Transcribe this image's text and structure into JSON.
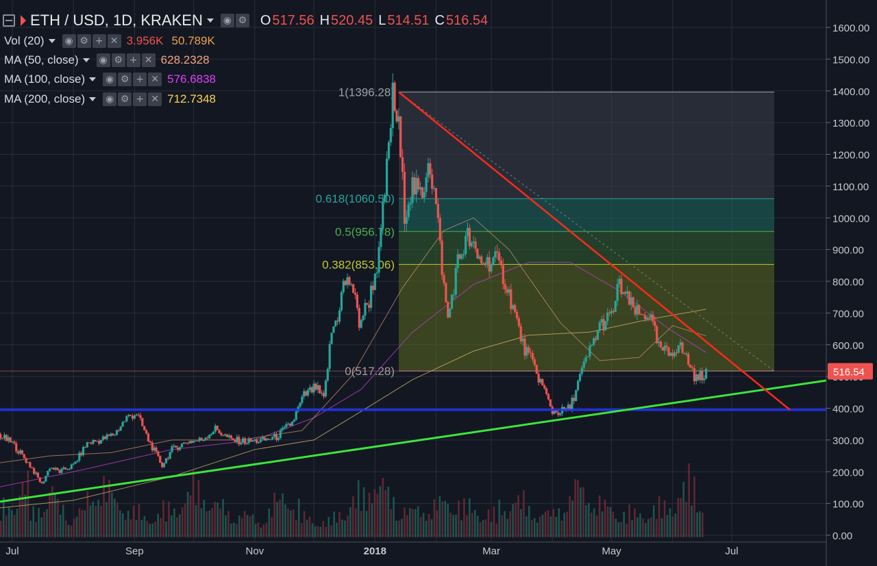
{
  "symbol": {
    "title": "ETH / USD, 1D, KRAKEN",
    "O": "517.56",
    "H": "520.45",
    "L": "514.51",
    "C": "516.54",
    "O_key": "O",
    "H_key": "H",
    "L_key": "L",
    "C_key": "C"
  },
  "indicators": [
    {
      "label": "Vol (20)",
      "values": [
        "3.956K",
        "50.789K"
      ],
      "colors": [
        "#ef5350",
        "#f0a04b"
      ]
    },
    {
      "label": "MA (50, close)",
      "values": [
        "628.2328"
      ],
      "colors": [
        "#f4a582"
      ]
    },
    {
      "label": "MA (100, close)",
      "values": [
        "576.6838"
      ],
      "colors": [
        "#e040fb"
      ]
    },
    {
      "label": "MA (200, close)",
      "values": [
        "712.7348"
      ],
      "colors": [
        "#ffd54f"
      ]
    }
  ],
  "icons": [
    "eye-icon",
    "gear-icon",
    "plus-icon",
    "close-icon"
  ],
  "colors": {
    "background": "#131722",
    "up": "#26a69a",
    "down": "#ef5350",
    "grid": "#2a2e39",
    "support_line": "#3ce63c",
    "resistance_line": "#ff2a1a",
    "horizontal_line": "#1e33ff"
  },
  "chart_data": {
    "type": "line",
    "title": "ETH / USD, 1D, KRAKEN",
    "price_axis": {
      "min": 0,
      "max": 1600,
      "ticks": [
        "1600.00",
        "1500.00",
        "1400.00",
        "1300.00",
        "1200.00",
        "1100.00",
        "1000.00",
        "900.00",
        "800.00",
        "700.00",
        "600.00",
        "500.00",
        "400.00",
        "300.00",
        "200.00",
        "100.00",
        "0.00"
      ]
    },
    "time_axis": {
      "labels": [
        "Jul",
        "Sep",
        "Nov",
        "2018",
        "Mar",
        "May",
        "Jul"
      ]
    },
    "current_price": "516.54",
    "fibonacci": [
      {
        "label": "1(1396.28)",
        "level": 1396.28
      },
      {
        "label": "0.618(1060.50)",
        "level": 1060.5
      },
      {
        "label": "0.5(956.78)",
        "level": 956.78
      },
      {
        "label": "0.382(853.06)",
        "level": 853.06
      },
      {
        "label": "0(517.28)",
        "level": 517.28
      }
    ],
    "horizontal_support": 395,
    "price_path": [
      {
        "x": "Jun 15",
        "y": 300
      },
      {
        "x": "Jun 20",
        "y": 330
      },
      {
        "x": "Jul 1",
        "y": 290
      },
      {
        "x": "Jul 10",
        "y": 220
      },
      {
        "x": "Jul 16",
        "y": 160
      },
      {
        "x": "Jul 20",
        "y": 215
      },
      {
        "x": "Jul 25",
        "y": 200
      },
      {
        "x": "Aug 1",
        "y": 220
      },
      {
        "x": "Aug 8",
        "y": 290
      },
      {
        "x": "Aug 15",
        "y": 300
      },
      {
        "x": "Aug 22",
        "y": 320
      },
      {
        "x": "Aug 28",
        "y": 370
      },
      {
        "x": "Sep 2",
        "y": 385
      },
      {
        "x": "Sep 8",
        "y": 300
      },
      {
        "x": "Sep 15",
        "y": 220
      },
      {
        "x": "Sep 20",
        "y": 270
      },
      {
        "x": "Sep 28",
        "y": 295
      },
      {
        "x": "Oct 5",
        "y": 300
      },
      {
        "x": "Oct 12",
        "y": 335
      },
      {
        "x": "Oct 20",
        "y": 300
      },
      {
        "x": "Oct 28",
        "y": 295
      },
      {
        "x": "Nov 5",
        "y": 298
      },
      {
        "x": "Nov 12",
        "y": 310
      },
      {
        "x": "Nov 20",
        "y": 355
      },
      {
        "x": "Nov 26",
        "y": 440
      },
      {
        "x": "Dec 2",
        "y": 465
      },
      {
        "x": "Dec 6",
        "y": 425
      },
      {
        "x": "Dec 10",
        "y": 640
      },
      {
        "x": "Dec 13",
        "y": 690
      },
      {
        "x": "Dec 16",
        "y": 790
      },
      {
        "x": "Dec 20",
        "y": 800
      },
      {
        "x": "Dec 24",
        "y": 670
      },
      {
        "x": "Dec 29",
        "y": 740
      },
      {
        "x": "Jan 3",
        "y": 880
      },
      {
        "x": "Jan 7",
        "y": 1150
      },
      {
        "x": "Jan 10",
        "y": 1380
      },
      {
        "x": "Jan 13",
        "y": 1280
      },
      {
        "x": "Jan 16",
        "y": 1020
      },
      {
        "x": "Jan 20",
        "y": 1100
      },
      {
        "x": "Jan 25",
        "y": 1060
      },
      {
        "x": "Jan 28",
        "y": 1200
      },
      {
        "x": "Feb 1",
        "y": 1040
      },
      {
        "x": "Feb 5",
        "y": 780
      },
      {
        "x": "Feb 7",
        "y": 680
      },
      {
        "x": "Feb 12",
        "y": 860
      },
      {
        "x": "Feb 17",
        "y": 940
      },
      {
        "x": "Feb 22",
        "y": 870
      },
      {
        "x": "Feb 27",
        "y": 860
      },
      {
        "x": "Mar 3",
        "y": 870
      },
      {
        "x": "Mar 7",
        "y": 820
      },
      {
        "x": "Mar 12",
        "y": 720
      },
      {
        "x": "Mar 17",
        "y": 600
      },
      {
        "x": "Mar 22",
        "y": 540
      },
      {
        "x": "Mar 27",
        "y": 470
      },
      {
        "x": "Apr 1",
        "y": 390
      },
      {
        "x": "Apr 6",
        "y": 390
      },
      {
        "x": "Apr 10",
        "y": 400
      },
      {
        "x": "Apr 15",
        "y": 500
      },
      {
        "x": "Apr 20",
        "y": 580
      },
      {
        "x": "Apr 25",
        "y": 660
      },
      {
        "x": "May 1",
        "y": 690
      },
      {
        "x": "May 5",
        "y": 790
      },
      {
        "x": "May 10",
        "y": 730
      },
      {
        "x": "May 15",
        "y": 690
      },
      {
        "x": "May 20",
        "y": 700
      },
      {
        "x": "May 25",
        "y": 590
      },
      {
        "x": "May 30",
        "y": 570
      },
      {
        "x": "Jun 4",
        "y": 600
      },
      {
        "x": "Jun 8",
        "y": 560
      },
      {
        "x": "Jun 13",
        "y": 490
      },
      {
        "x": "Jun 18",
        "y": 517
      }
    ],
    "ma200_path": [
      {
        "x": "Jun 15",
        "y": 80
      },
      {
        "x": "Aug 1",
        "y": 110
      },
      {
        "x": "Sep 20",
        "y": 185
      },
      {
        "x": "Nov 1",
        "y": 270
      },
      {
        "x": "Dec 1",
        "y": 300
      },
      {
        "x": "Dec 25",
        "y": 390
      },
      {
        "x": "Jan 20",
        "y": 490
      },
      {
        "x": "Feb 20",
        "y": 580
      },
      {
        "x": "Mar 20",
        "y": 630
      },
      {
        "x": "Apr 20",
        "y": 640
      },
      {
        "x": "May 20",
        "y": 680
      },
      {
        "x": "Jun 18",
        "y": 712
      }
    ],
    "ma100_path": [
      {
        "x": "Jun 15",
        "y": 140
      },
      {
        "x": "Aug 1",
        "y": 200
      },
      {
        "x": "Sep 20",
        "y": 270
      },
      {
        "x": "Nov 1",
        "y": 300
      },
      {
        "x": "Dec 1",
        "y": 370
      },
      {
        "x": "Dec 25",
        "y": 460
      },
      {
        "x": "Jan 20",
        "y": 640
      },
      {
        "x": "Feb 20",
        "y": 790
      },
      {
        "x": "Mar 20",
        "y": 860
      },
      {
        "x": "Apr 10",
        "y": 860
      },
      {
        "x": "May 5",
        "y": 770
      },
      {
        "x": "May 30",
        "y": 650
      },
      {
        "x": "Jun 18",
        "y": 576
      }
    ],
    "ma50_path": [
      {
        "x": "Jun 15",
        "y": 220
      },
      {
        "x": "Jul 20",
        "y": 250
      },
      {
        "x": "Aug 20",
        "y": 260
      },
      {
        "x": "Sep 20",
        "y": 300
      },
      {
        "x": "Oct 25",
        "y": 300
      },
      {
        "x": "Nov 25",
        "y": 330
      },
      {
        "x": "Dec 20",
        "y": 500
      },
      {
        "x": "Jan 15",
        "y": 780
      },
      {
        "x": "Feb 5",
        "y": 960
      },
      {
        "x": "Feb 20",
        "y": 1000
      },
      {
        "x": "Mar 10",
        "y": 900
      },
      {
        "x": "Apr 5",
        "y": 670
      },
      {
        "x": "Apr 25",
        "y": 550
      },
      {
        "x": "May 15",
        "y": 560
      },
      {
        "x": "Jun 1",
        "y": 660
      },
      {
        "x": "Jun 18",
        "y": 628
      }
    ],
    "support_trendline": [
      {
        "x": "Jun 15",
        "y": 100
      },
      {
        "x": "Aug 1",
        "y": 480
      }
    ],
    "resistance_trendline": [
      {
        "x": "Jan 10",
        "y": 1396.28
      },
      {
        "x": "Jul 15",
        "y": 395
      }
    ],
    "volume_profile": [
      60,
      80,
      100,
      50,
      70,
      90,
      60,
      40,
      50,
      80,
      110,
      90,
      70,
      60,
      50,
      40,
      45,
      55,
      60,
      80,
      100,
      95,
      70,
      60,
      50,
      45,
      40,
      35,
      50,
      70,
      90,
      60,
      40,
      35,
      30,
      40,
      55,
      70,
      85,
      120,
      100,
      80,
      60,
      50,
      55,
      60,
      65,
      70,
      75,
      60,
      55,
      50,
      45,
      60,
      80,
      70,
      55,
      50,
      45,
      60,
      80,
      100,
      90,
      70,
      60,
      55,
      50,
      45,
      50,
      55,
      60,
      70,
      90,
      110,
      80
    ]
  }
}
